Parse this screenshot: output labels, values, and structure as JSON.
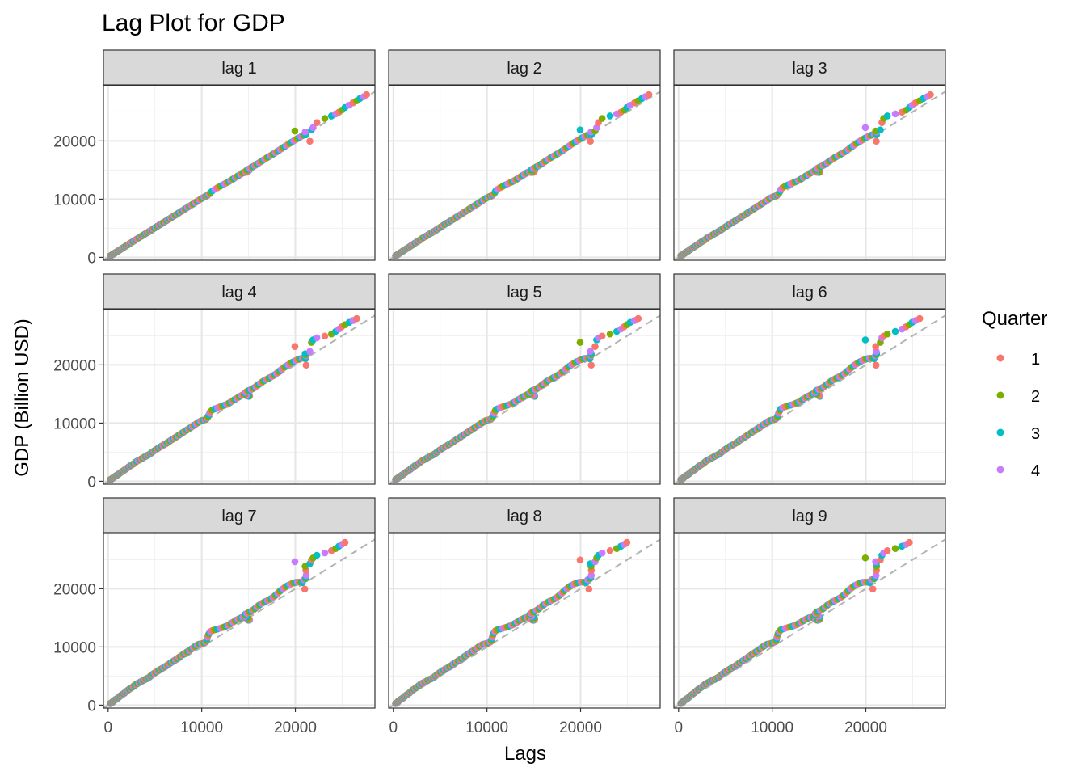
{
  "chart_data": {
    "type": "scatter",
    "title": "Lag Plot for GDP",
    "xlabel": "Lags",
    "ylabel": "GDP (Billion USD)",
    "legend": {
      "title": "Quarter",
      "position": "right",
      "entries": [
        {
          "label": "1",
          "color": "#F8766D"
        },
        {
          "label": "2",
          "color": "#7CAE00"
        },
        {
          "label": "3",
          "color": "#00BFC4"
        },
        {
          "label": "4",
          "color": "#C77CFF"
        }
      ]
    },
    "xlim": [
      -500,
      28500
    ],
    "ylim": [
      -500,
      29500
    ],
    "x_ticks": [
      0,
      10000,
      20000
    ],
    "x_tick_labels": [
      "0",
      "10000",
      "20000"
    ],
    "y_ticks": [
      0,
      10000,
      20000
    ],
    "y_tick_labels": [
      "0",
      "10000",
      "20000"
    ],
    "grid": true,
    "reference_line": "y = x (dashed, grey)",
    "panels": [
      {
        "label": "lag 1",
        "lag": 1
      },
      {
        "label": "lag 2",
        "lag": 2
      },
      {
        "label": "lag 3",
        "lag": 3
      },
      {
        "label": "lag 4",
        "lag": 4
      },
      {
        "label": "lag 5",
        "lag": 5
      },
      {
        "label": "lag 6",
        "lag": 6
      },
      {
        "label": "lag 7",
        "lag": 7
      },
      {
        "label": "lag 8",
        "lag": 8
      },
      {
        "label": "lag 9",
        "lag": 9
      }
    ],
    "gdp_series": {
      "start_quarter": 2,
      "values": [
        243,
        246,
        248,
        251,
        254,
        259,
        265,
        272,
        280,
        289,
        296,
        303,
        310,
        316,
        321,
        326,
        331,
        335,
        339,
        343,
        346,
        348,
        351,
        355,
        360,
        366,
        373,
        380,
        388,
        396,
        404,
        413,
        422,
        430,
        438,
        446,
        451,
        457,
        463,
        468,
        474,
        480,
        485,
        491,
        499,
        509,
        521,
        532,
        545,
        560,
        575,
        592,
        610,
        629,
        649,
        669,
        691,
        715,
        738,
        762,
        785,
        807,
        828,
        849,
        871,
        895,
        919,
        944,
        970,
        995,
        1021,
        1045,
        1068,
        1091,
        1114,
        1139,
        1165,
        1193,
        1223,
        1254,
        1287,
        1320,
        1356,
        1395,
        1436,
        1477,
        1521,
        1565,
        1610,
        1652,
        1695,
        1739,
        1784,
        1827,
        1872,
        1921,
        1971,
        2025,
        2081,
        2135,
        2192,
        2255,
        2318,
        2385,
        2453,
        2524,
        2597,
        2671,
        2740,
        2810,
        2876,
        2940,
        3010,
        3096,
        3196,
        3299,
        3390,
        3474,
        3550,
        3624,
        3699,
        3773,
        3847,
        3920,
        4000,
        4077,
        4144,
        4204,
        4270,
        4336,
        4400,
        4458,
        4512,
        4565,
        4622,
        4680,
        4742,
        4807,
        4877,
        4952,
        5029,
        5107,
        5184,
        5262,
        5342,
        5424,
        5507,
        5592,
        5678,
        5763,
        5846,
        5928,
        6006,
        6083,
        6161,
        6236,
        6310,
        6383,
        6457,
        6532,
        6610,
        6690,
        6771,
        6853,
        6936,
        7021,
        7107,
        7192,
        7276,
        7361,
        7447,
        7534,
        7624,
        7715,
        7806,
        7897,
        7991,
        8086,
        8183,
        8281,
        8379,
        8479,
        8578,
        8678,
        8779,
        8882,
        8985,
        9089,
        9194,
        9301,
        9410,
        9521,
        9634,
        9750,
        9870,
        9996,
        10122,
        10240,
        10339,
        10422,
        10479,
        10516,
        10565,
        10617,
        10675,
        10753,
        10836,
        10922,
        11117,
        11393,
        11687,
        11971,
        12226,
        12446,
        12643,
        12810,
        12953,
        13085,
        13214,
        13342,
        13471,
        13600,
        13733,
        13869,
        14003,
        14132,
        14261,
        14393,
        14529,
        14651,
        14758,
        14861,
        14957,
        15044,
        15090,
        15097,
        15057,
        14960,
        14760,
        14610,
        14590,
        14620,
        14698,
        14810,
        14968,
        15134,
        15289,
        15426,
        15550,
        15668,
        15780,
        15894,
        16015,
        16145,
        16280,
        16421,
        16569,
        16722,
        16877,
        17032,
        17184,
        17331,
        17473,
        17609,
        17740,
        17866,
        17989,
        18113,
        18243,
        18383,
        18533,
        18694,
        18865,
        19045,
        19233,
        19428,
        19627,
        19828,
        20028,
        20224,
        20413,
        20590,
        20751,
        20891,
        21006,
        21090,
        21140,
        21150,
        21120,
        21050,
        21550,
        19950,
        21720,
        21900,
        22300,
        23150,
        23860,
        24300,
        24650,
        24950,
        25300,
        25750,
        26150,
        26550,
        26900,
        27300,
        27610,
        27960
      ]
    }
  }
}
